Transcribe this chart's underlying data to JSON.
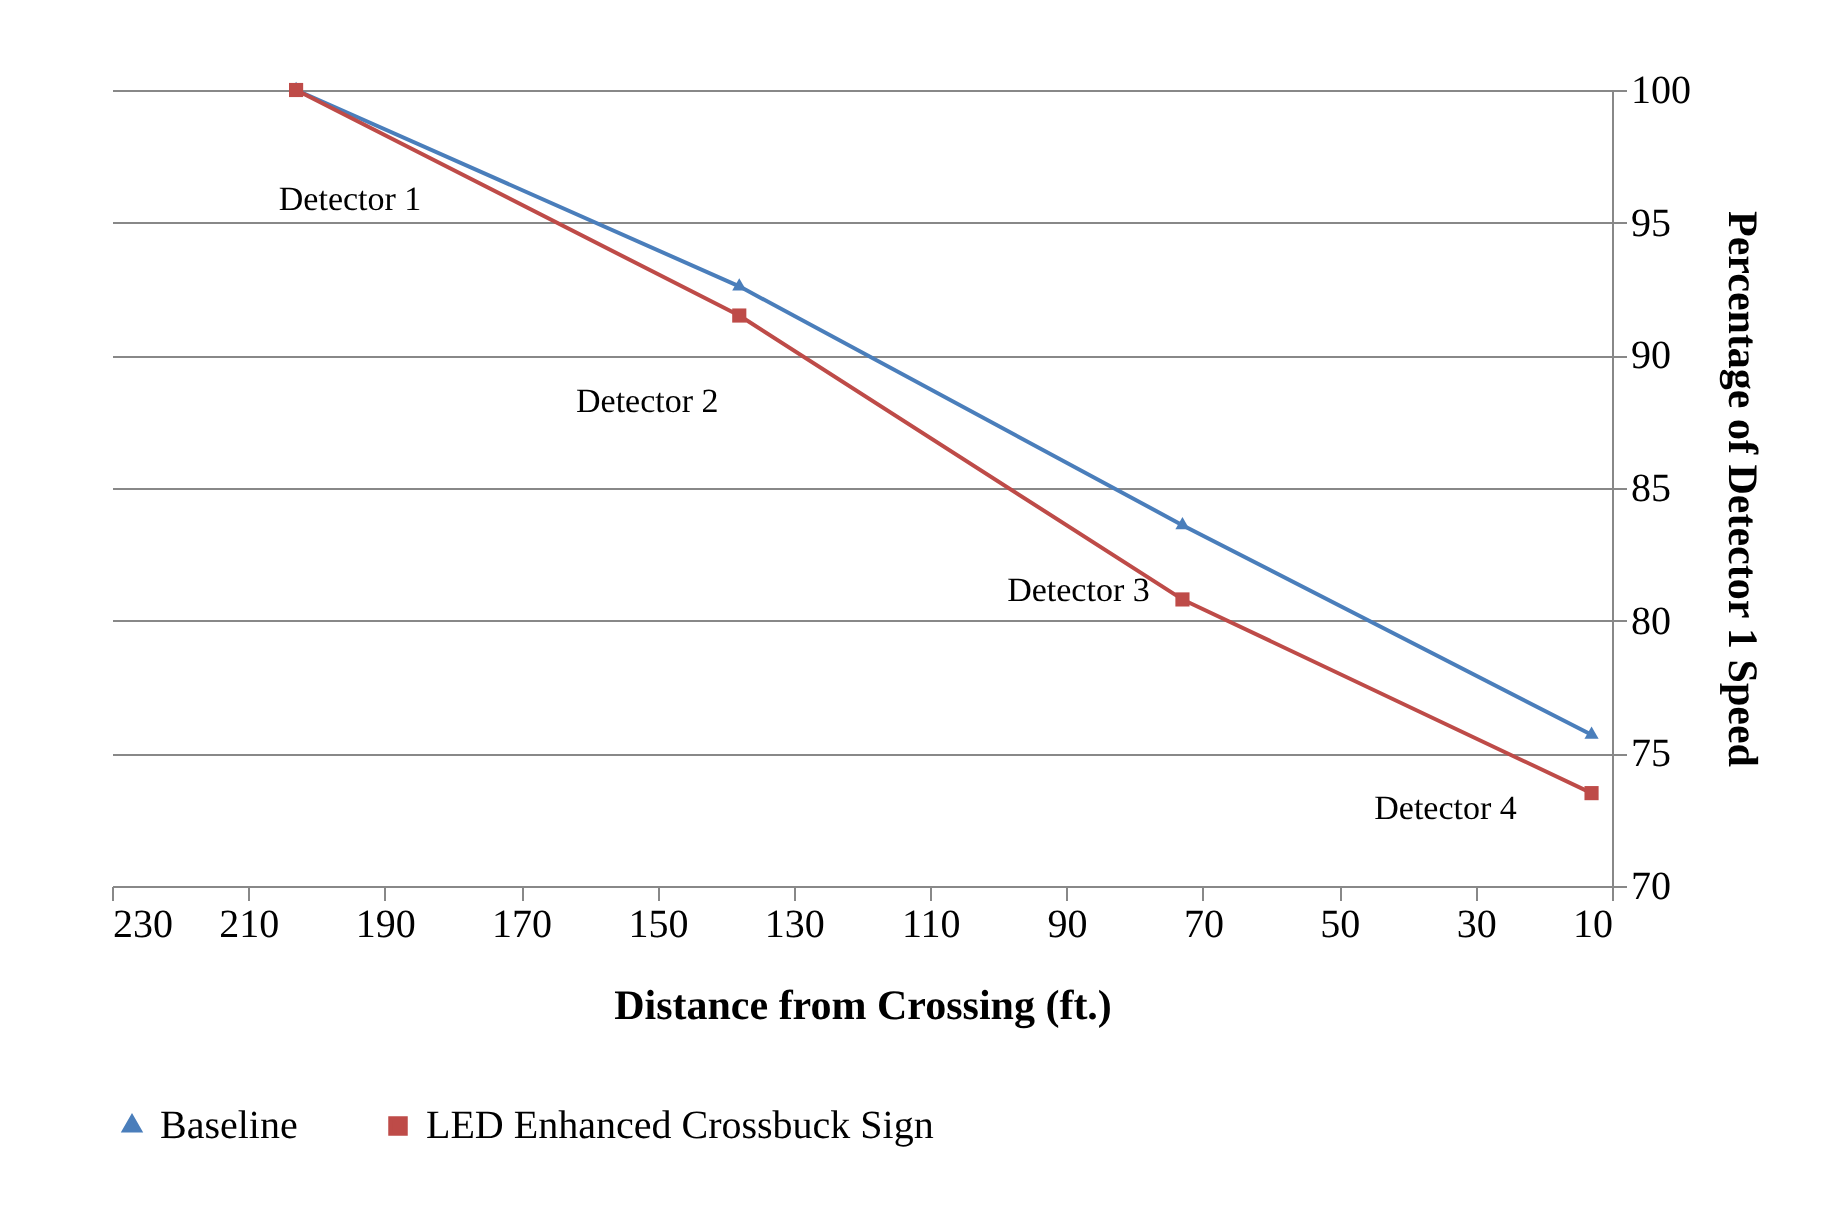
{
  "chart_data": {
    "type": "line",
    "xlabel": "Distance from Crossing (ft.)",
    "ylabel": "Percentage of Detector 1 Speed",
    "x": [
      203,
      138,
      73,
      13
    ],
    "series": [
      {
        "name": "Baseline",
        "color": "#4a7ebb",
        "marker": "triangle",
        "values": [
          100,
          92.6,
          83.6,
          75.7
        ]
      },
      {
        "name": "LED Enhanced Crossbuck Sign",
        "color": "#be4b48",
        "marker": "square",
        "values": [
          100,
          91.5,
          80.8,
          73.5
        ]
      }
    ],
    "annotations": [
      {
        "text": "Detector 1",
        "x": 203,
        "y": 100
      },
      {
        "text": "Detector 2",
        "x": 138,
        "y": 91.5
      },
      {
        "text": "Detector 3",
        "x": 73,
        "y": 80.8
      },
      {
        "text": "Detector 4",
        "x": 13,
        "y": 73.5
      }
    ],
    "xlim": [
      230,
      10
    ],
    "xticks": [
      230,
      210,
      190,
      170,
      150,
      130,
      110,
      90,
      70,
      50,
      30,
      10
    ],
    "ylim": [
      70,
      100
    ],
    "yticks": [
      70,
      75,
      80,
      85,
      90,
      95,
      100
    ],
    "grid": "y",
    "legend": "bottom",
    "line_style": "solid"
  }
}
